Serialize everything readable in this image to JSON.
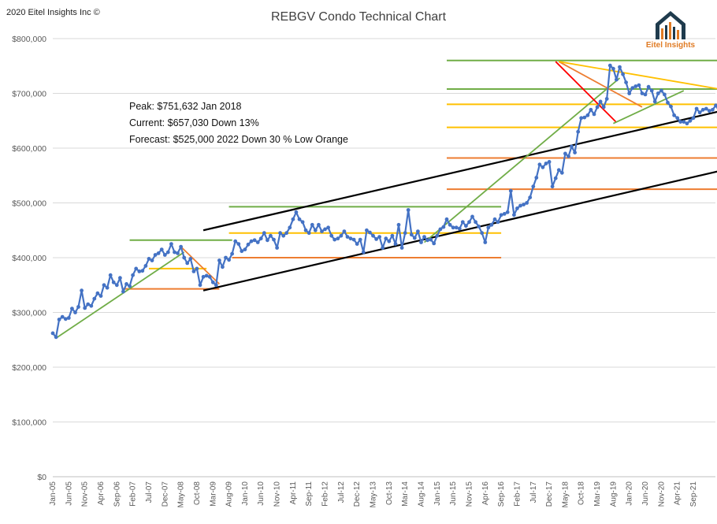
{
  "copyright": "2020 Eitel Insights Inc ©",
  "logo": {
    "text": "Eitel Insights",
    "colors": {
      "roof": "#1f3b4d",
      "text": "#e07b24"
    }
  },
  "colors": {
    "series": "#4472c4",
    "green": "#70ad47",
    "yellow": "#ffc000",
    "orange": "#ed7d31",
    "red": "#ff0000",
    "black": "#000000"
  },
  "annotations": [
    "Peak: $751,632    Jan 2018",
    "Current: $657,030   Down 13%",
    "Forecast: $525,000   2022   Down 30 % Low Orange"
  ],
  "chart_data": {
    "type": "line",
    "title": "REBGV Condo Technical Chart",
    "xlabel": "",
    "ylabel": "",
    "ylim": [
      0,
      800000
    ],
    "y_ticks": [
      0,
      100000,
      200000,
      300000,
      400000,
      500000,
      600000,
      700000,
      800000
    ],
    "y_tick_labels": [
      "$0",
      "$100,000",
      "$200,000",
      "$300,000",
      "$400,000",
      "$500,000",
      "$600,000",
      "$700,000",
      "$800,000"
    ],
    "x_tick_labels": [
      "Jan-05",
      "Jun-05",
      "Nov-05",
      "Apr-06",
      "Sep-06",
      "Feb-07",
      "Jul-07",
      "Dec-07",
      "May-08",
      "Oct-08",
      "Mar-09",
      "Aug-09",
      "Jan-10",
      "Jun-10",
      "Nov-10",
      "Apr-11",
      "Sep-11",
      "Feb-12",
      "Jul-12",
      "Dec-12",
      "May-13",
      "Oct-13",
      "Mar-14",
      "Aug-14",
      "Jan-15",
      "Jun-15",
      "Nov-15",
      "Apr-16",
      "Sep-16",
      "Feb-17",
      "Jul-17",
      "Dec-17",
      "May-18",
      "Oct-18",
      "Mar-19",
      "Aug-19",
      "Jan-20",
      "Jun-20",
      "Nov-20",
      "Apr-21",
      "Sep-21"
    ],
    "grid": true,
    "legend": "none",
    "series": [
      {
        "start": "2005-01",
        "values": [
          262000,
          255000,
          287000,
          292000,
          288000,
          290000,
          307000,
          300000,
          310000,
          340000,
          308000,
          315000,
          312000,
          325000,
          335000,
          330000,
          350000,
          345000,
          368000,
          355000,
          350000,
          363000,
          338000,
          352000,
          348000,
          368000,
          380000,
          375000,
          376000,
          385000,
          398000,
          395000,
          405000,
          408000,
          415000,
          405000,
          410000,
          425000,
          410000,
          408000,
          420000,
          400000,
          390000,
          398000,
          375000,
          380000,
          350000,
          365000,
          367000,
          365000,
          355000,
          350000,
          395000,
          383000,
          400000,
          396000,
          407000,
          430000,
          425000,
          412000,
          415000,
          424000,
          430000,
          432000,
          428000,
          435000,
          445000,
          432000,
          440000,
          433000,
          418000,
          445000,
          440000,
          445000,
          455000,
          470000,
          483000,
          470000,
          465000,
          450000,
          445000,
          460000,
          450000,
          460000,
          448000,
          452000,
          455000,
          440000,
          433000,
          435000,
          440000,
          448000,
          438000,
          435000,
          433000,
          425000,
          433000,
          410000,
          450000,
          446000,
          440000,
          434000,
          438000,
          418000,
          435000,
          430000,
          440000,
          425000,
          460000,
          418000,
          445000,
          487000,
          442000,
          436000,
          448000,
          428000,
          438000,
          432000,
          433000,
          426000,
          440000,
          452000,
          456000,
          470000,
          460000,
          455000,
          455000,
          453000,
          465000,
          458000,
          465000,
          475000,
          465000,
          457000,
          445000,
          428000,
          455000,
          460000,
          470000,
          465000,
          478000,
          480000,
          483000,
          522000,
          478000,
          490000,
          495000,
          497000,
          500000,
          510000,
          530000,
          546000,
          570000,
          565000,
          572000,
          575000,
          530000,
          545000,
          560000,
          555000,
          590000,
          585000,
          603000,
          592000,
          630000,
          655000,
          656000,
          660000,
          670000,
          662000,
          675000,
          685000,
          675000,
          690000,
          751000,
          745000,
          725000,
          748000,
          735000,
          720000,
          700000,
          710000,
          713000,
          715000,
          700000,
          698000,
          712000,
          705000,
          685000,
          700000,
          705000,
          698000,
          683000,
          676000,
          660000,
          655000,
          648000,
          648000,
          645000,
          650000,
          655000,
          672000,
          665000,
          670000,
          672000,
          668000,
          670000,
          678000,
          668000,
          685000,
          700000,
          672000,
          678000,
          680000,
          683000,
          695000,
          700000,
          690000,
          657000
        ]
      }
    ],
    "reference_lines": [
      {
        "color": "green",
        "y": 432000,
        "x1": "2007-01",
        "x2": "2009-09"
      },
      {
        "color": "yellow",
        "y": 380000,
        "x1": "2007-07",
        "x2": "2009-01"
      },
      {
        "color": "orange",
        "y": 343000,
        "x1": "2006-11",
        "x2": "2009-05"
      },
      {
        "color": "green",
        "y": 493000,
        "x1": "2009-08",
        "x2": "2016-09"
      },
      {
        "color": "yellow",
        "y": 445000,
        "x1": "2009-08",
        "x2": "2016-09"
      },
      {
        "color": "orange",
        "y": 400000,
        "x1": "2009-09",
        "x2": "2016-09"
      },
      {
        "color": "green",
        "y": 760000,
        "x1": "2015-04",
        "x2": "2022-05"
      },
      {
        "color": "green",
        "y": 708000,
        "x1": "2015-04",
        "x2": "2022-05"
      },
      {
        "color": "yellow",
        "y": 680000,
        "x1": "2015-04",
        "x2": "2022-05"
      },
      {
        "color": "yellow",
        "y": 638000,
        "x1": "2015-04",
        "x2": "2022-05"
      },
      {
        "color": "orange",
        "y": 582000,
        "x1": "2015-04",
        "x2": "2022-05"
      },
      {
        "color": "orange",
        "y": 525000,
        "x1": "2015-04",
        "x2": "2022-05"
      }
    ],
    "trend_lines": [
      {
        "color": "green",
        "x1": "2005-02",
        "y1": 253000,
        "x2": "2008-06",
        "y2": 410000
      },
      {
        "color": "orange",
        "x1": "2008-05",
        "y1": 420000,
        "x2": "2009-05",
        "y2": 352000
      },
      {
        "color": "black",
        "x1": "2008-12",
        "y1": 450000,
        "x2": "2022-05",
        "y2": 667000
      },
      {
        "color": "black",
        "x1": "2008-12",
        "y1": 340000,
        "x2": "2022-05",
        "y2": 558000
      },
      {
        "color": "green",
        "x1": "2014-09",
        "y1": 428000,
        "x2": "2019-10",
        "y2": 728000
      },
      {
        "color": "red",
        "x1": "2018-02",
        "y1": 758000,
        "x2": "2019-09",
        "y2": 647000
      },
      {
        "color": "orange",
        "x1": "2018-03",
        "y1": 758000,
        "x2": "2020-05",
        "y2": 675000
      },
      {
        "color": "yellow",
        "x1": "2018-03",
        "y1": 758000,
        "x2": "2022-05",
        "y2": 708000
      },
      {
        "color": "green",
        "x1": "2019-08",
        "y1": 645000,
        "x2": "2021-06",
        "y2": 705000
      }
    ]
  }
}
